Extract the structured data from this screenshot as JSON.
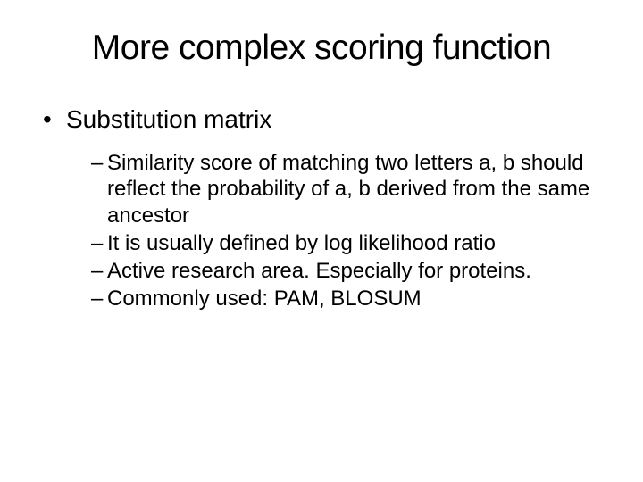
{
  "slide": {
    "title": "More complex scoring function",
    "bullets": [
      {
        "text": "Substitution matrix",
        "sub": [
          "Similarity score of matching two letters a, b should reflect the probability of a, b derived from the same ancestor",
          "It is usually defined by log likelihood ratio",
          "Active research area. Especially for proteins.",
          "Commonly used: PAM, BLOSUM"
        ]
      }
    ],
    "colors": {
      "background": "#ffffff",
      "text": "#000000"
    },
    "typography": {
      "title_fontsize": 39,
      "level1_fontsize": 28,
      "level2_fontsize": 24,
      "font_family": "Arial"
    }
  }
}
